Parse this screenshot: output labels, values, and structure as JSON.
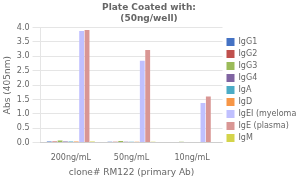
{
  "chart_data": {
    "type": "bar",
    "title": "Plate Coated with:\n(50ng/well)",
    "xlabel": "clone# RM122 (primary Ab)",
    "ylabel": "Abs (405nm)",
    "categories": [
      "200ng/mL",
      "50ng/mL",
      "10ng/mL"
    ],
    "series": [
      {
        "name": "IgG1",
        "color": "#4472C4",
        "values": [
          0.04,
          0.03,
          0.02
        ]
      },
      {
        "name": "IgG2",
        "color": "#C0504D",
        "values": [
          0.04,
          0.03,
          0.02
        ]
      },
      {
        "name": "IgG3",
        "color": "#9BBB59",
        "values": [
          0.07,
          0.06,
          0.03
        ]
      },
      {
        "name": "IgG4",
        "color": "#8064A2",
        "values": [
          0.04,
          0.03,
          0.02
        ]
      },
      {
        "name": "IgA",
        "color": "#4BACC6",
        "values": [
          0.04,
          0.03,
          0.02
        ]
      },
      {
        "name": "IgD",
        "color": "#F79646",
        "values": [
          0.04,
          0.03,
          0.02
        ]
      },
      {
        "name": "IgEI (myeloma)",
        "color": "#C0C0FF",
        "values": [
          3.88,
          2.85,
          1.38
        ]
      },
      {
        "name": "IgE (plasma)",
        "color": "#D99694",
        "values": [
          3.92,
          3.22,
          1.6
        ]
      },
      {
        "name": "IgM",
        "color": "#D4D44A",
        "values": [
          0.04,
          0.03,
          0.02
        ]
      }
    ],
    "ylim": [
      0,
      4.0
    ],
    "yticks": [
      {
        "value": 0,
        "label": "0.0"
      },
      0.5,
      {
        "value": 1,
        "label": "1.0"
      },
      1.5,
      {
        "value": 2,
        "label": "2.0"
      },
      2.5,
      {
        "value": 3,
        "label": "3.0"
      },
      3.5,
      {
        "value": 4,
        "label": "4.0"
      }
    ],
    "grid": true,
    "legend": "right"
  }
}
